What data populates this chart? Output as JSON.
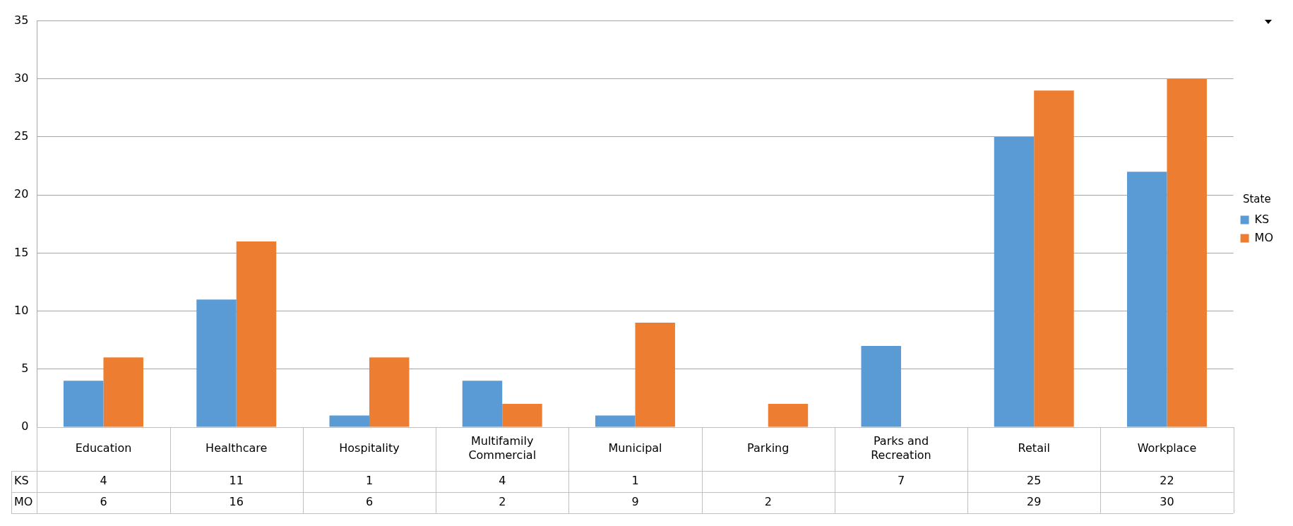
{
  "chart_data": {
    "type": "bar",
    "categories": [
      "Education",
      "Healthcare",
      "Hospitality",
      "Multifamily Commercial",
      "Municipal",
      "Parking",
      "Parks and Recreation",
      "Retail",
      "Workplace"
    ],
    "series": [
      {
        "name": "KS",
        "color": "#5b9bd5",
        "values": [
          4,
          11,
          1,
          4,
          1,
          null,
          7,
          25,
          22
        ]
      },
      {
        "name": "MO",
        "color": "#ed7d31",
        "values": [
          6,
          16,
          6,
          2,
          9,
          2,
          null,
          29,
          30
        ]
      }
    ],
    "ylim": [
      0,
      35
    ],
    "yticks": [
      0,
      5,
      10,
      15,
      20,
      25,
      30,
      35
    ],
    "grid": "y",
    "legend": "right",
    "legend_title": "State",
    "data_labels": true
  }
}
